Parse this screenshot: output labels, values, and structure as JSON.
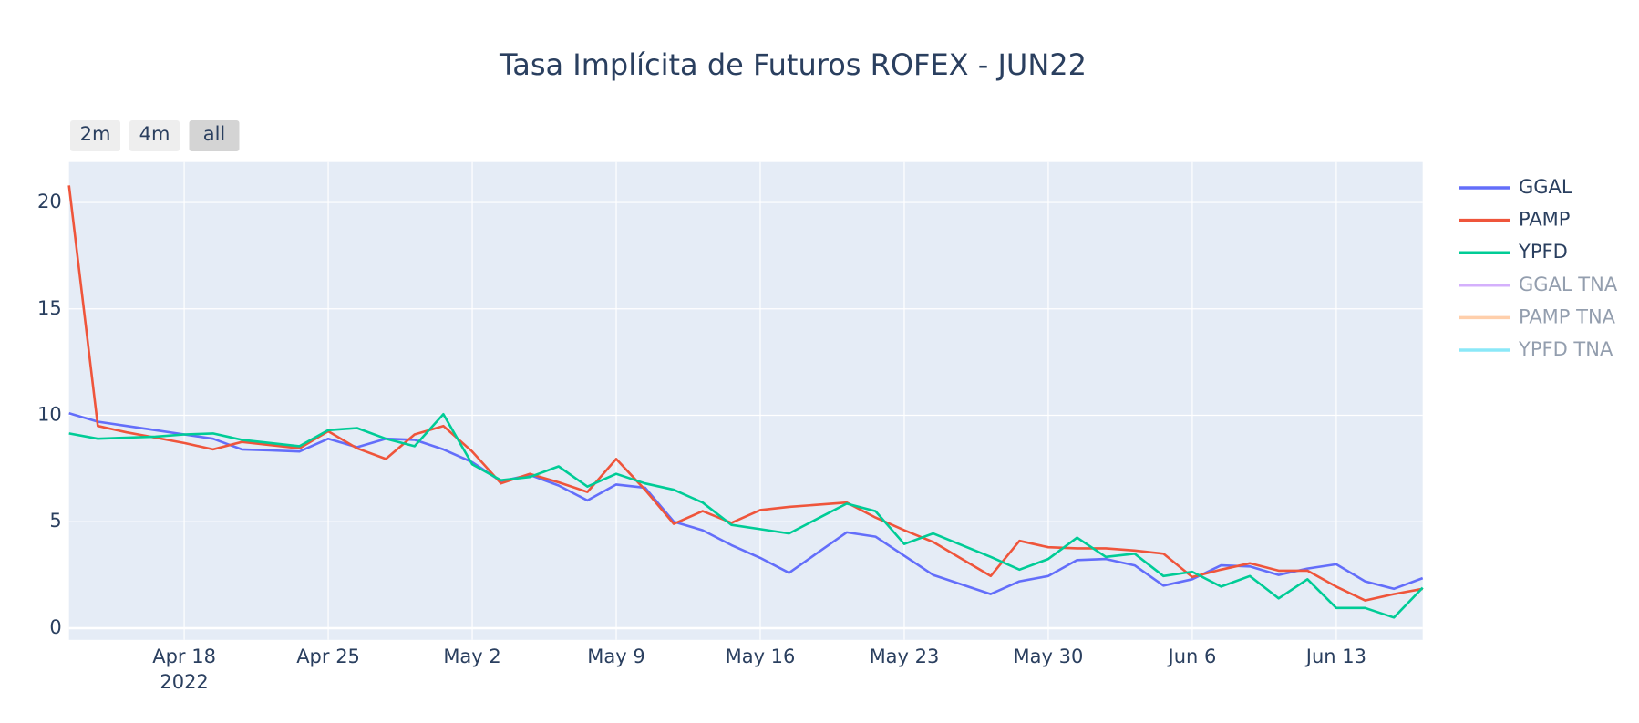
{
  "chart_data": {
    "type": "line",
    "title": "Tasa Implícita de Futuros ROFEX - JUN22",
    "range_buttons": [
      "2m",
      "4m",
      "all"
    ],
    "active_button": "all",
    "x": [
      "2022-04-12",
      "2022-04-13",
      "2022-04-14",
      "2022-04-15",
      "2022-04-18",
      "2022-04-19",
      "2022-04-20",
      "2022-04-21",
      "2022-04-22",
      "2022-04-25",
      "2022-04-26",
      "2022-04-27",
      "2022-04-28",
      "2022-04-29",
      "2022-05-02",
      "2022-05-03",
      "2022-05-04",
      "2022-05-05",
      "2022-05-06",
      "2022-05-09",
      "2022-05-10",
      "2022-05-11",
      "2022-05-12",
      "2022-05-13",
      "2022-05-16",
      "2022-05-17",
      "2022-05-18",
      "2022-05-19",
      "2022-05-20",
      "2022-05-23",
      "2022-05-24",
      "2022-05-25",
      "2022-05-26",
      "2022-05-27",
      "2022-05-30",
      "2022-05-31",
      "2022-06-01",
      "2022-06-02",
      "2022-06-03",
      "2022-06-06",
      "2022-06-07",
      "2022-06-08",
      "2022-06-09",
      "2022-06-10",
      "2022-06-13",
      "2022-06-14",
      "2022-06-15",
      "2022-06-16"
    ],
    "xlim": [
      "2022-04-12",
      "2022-06-16"
    ],
    "x_rangebreaks": "weekends",
    "xticks": [
      {
        "value": "2022-04-18",
        "label": "Apr 18"
      },
      {
        "value": "2022-04-25",
        "label": "Apr 25"
      },
      {
        "value": "2022-05-02",
        "label": "May 2"
      },
      {
        "value": "2022-05-09",
        "label": "May 9"
      },
      {
        "value": "2022-05-16",
        "label": "May 16"
      },
      {
        "value": "2022-05-23",
        "label": "May 23"
      },
      {
        "value": "2022-05-30",
        "label": "May 30"
      },
      {
        "value": "2022-06-06",
        "label": "Jun 6"
      },
      {
        "value": "2022-06-13",
        "label": "Jun 13"
      }
    ],
    "xtick_year": "2022",
    "ylim": [
      -0.55,
      21.9
    ],
    "yticks": [
      0,
      5,
      10,
      15,
      20
    ],
    "grid": true,
    "legend": "right",
    "series": [
      {
        "name": "GGAL",
        "color": "#636efa",
        "values": [
          10.1,
          9.7,
          9.5,
          9.3,
          9.1,
          8.9,
          8.4,
          8.35,
          8.3,
          8.9,
          8.5,
          8.9,
          8.85,
          8.4,
          7.8,
          6.9,
          7.2,
          6.7,
          6.0,
          6.75,
          6.6,
          5.0,
          4.6,
          3.9,
          3.3,
          2.6,
          3.55,
          4.5,
          4.3,
          3.4,
          2.5,
          2.05,
          1.6,
          2.2,
          2.45,
          3.2,
          3.25,
          2.95,
          2.0,
          2.3,
          2.95,
          2.9,
          2.5,
          2.8,
          3.0,
          2.2,
          1.85,
          2.35
        ]
      },
      {
        "name": "PAMP",
        "color": "#ef553b",
        "values": [
          20.8,
          9.5,
          9.2,
          8.95,
          8.7,
          8.4,
          8.75,
          8.6,
          8.45,
          9.25,
          8.45,
          7.95,
          9.1,
          9.5,
          8.3,
          6.8,
          7.25,
          6.85,
          6.4,
          7.95,
          6.5,
          4.9,
          5.5,
          4.95,
          5.55,
          5.7,
          5.8,
          5.9,
          5.2,
          4.6,
          4.05,
          3.25,
          2.45,
          4.1,
          3.8,
          3.75,
          3.75,
          3.65,
          3.5,
          2.4,
          2.75,
          3.05,
          2.7,
          2.7,
          1.95,
          1.3,
          1.6,
          1.85
        ]
      },
      {
        "name": "YPFD",
        "color": "#00cc96",
        "values": [
          9.15,
          8.9,
          8.95,
          9.0,
          9.1,
          9.15,
          8.85,
          8.7,
          8.55,
          9.3,
          9.4,
          8.9,
          8.55,
          10.05,
          7.7,
          6.95,
          7.1,
          7.6,
          6.65,
          7.25,
          6.8,
          6.5,
          5.9,
          4.85,
          4.65,
          4.45,
          5.15,
          5.85,
          5.5,
          3.95,
          4.45,
          3.9,
          3.35,
          2.75,
          3.25,
          4.25,
          3.35,
          3.5,
          2.45,
          2.65,
          1.95,
          2.45,
          1.4,
          2.3,
          0.95,
          0.95,
          0.5,
          1.9
        ]
      },
      {
        "name": "GGAL TNA",
        "color": "#ab63fa",
        "visible": "legendonly"
      },
      {
        "name": "PAMP TNA",
        "color": "#ffa15a",
        "visible": "legendonly"
      },
      {
        "name": "YPFD TNA",
        "color": "#19d3f3",
        "visible": "legendonly"
      }
    ]
  }
}
